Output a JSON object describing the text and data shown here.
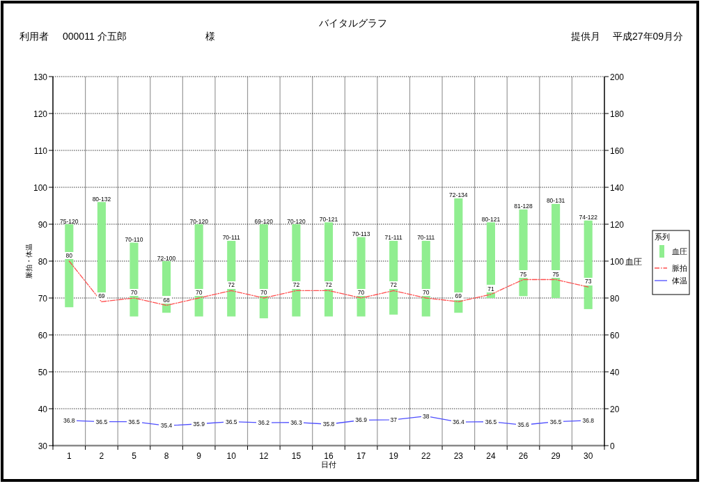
{
  "chart_data": {
    "type": "bar",
    "title": "バイタルグラフ",
    "xlabel": "日付",
    "ylabel": "脈拍・体温",
    "y2label": "血圧",
    "legend_title": "系列",
    "annotations": [
      "利用者",
      "000011 介五郎",
      "様",
      "提供月",
      "平成27年09月分"
    ],
    "categories": [
      "1",
      "2",
      "5",
      "8",
      "9",
      "10",
      "12",
      "15",
      "16",
      "17",
      "19",
      "22",
      "23",
      "24",
      "26",
      "29",
      "30"
    ],
    "series": [
      {
        "name": "血圧",
        "axis": "y2",
        "color": "#90ee90",
        "base": [
          75,
          80,
          70,
          72,
          70,
          70,
          69,
          70,
          70,
          70,
          71,
          70,
          72,
          80,
          81,
          80,
          74
        ],
        "values": [
          45,
          52,
          40,
          28,
          50,
          41,
          51,
          50,
          51,
          43,
          40,
          41,
          62,
          41,
          47,
          51,
          48
        ],
        "value_labels": [
          "75-120",
          "80-132",
          "70-110",
          "72-100",
          "70-120",
          "70-111",
          "69-120",
          "70-120",
          "70-121",
          "70-113",
          "71-111",
          "70-111",
          "72-134",
          "80-121",
          "81-128",
          "80-131",
          "74-122"
        ]
      },
      {
        "name": "脈拍",
        "type": "line",
        "axis": "y",
        "color": "#ff4d4d",
        "line_style": "dashdot",
        "data_labels": true,
        "values": [
          80,
          69,
          70,
          68,
          70,
          72,
          70,
          72,
          72,
          70,
          72,
          70,
          69,
          71,
          75,
          75,
          73
        ]
      },
      {
        "name": "体温",
        "type": "line",
        "axis": "y",
        "color": "#4d4dff",
        "line_style": "solid",
        "data_labels": true,
        "values": [
          36.8,
          36.5,
          36.5,
          35.4,
          35.9,
          36.5,
          36.2,
          36.3,
          35.8,
          36.9,
          37,
          38,
          36.4,
          36.5,
          35.6,
          36.5,
          36.8
        ]
      }
    ],
    "ylim": [
      30,
      130
    ],
    "yticks": [
      30,
      40,
      50,
      60,
      70,
      80,
      90,
      100,
      110,
      120,
      130
    ],
    "y2lim": [
      0,
      200
    ],
    "y2ticks": [
      0,
      20,
      40,
      60,
      80,
      100,
      120,
      140,
      160,
      180,
      200
    ],
    "grid": true,
    "legend": "right",
    "marker": "none"
  }
}
